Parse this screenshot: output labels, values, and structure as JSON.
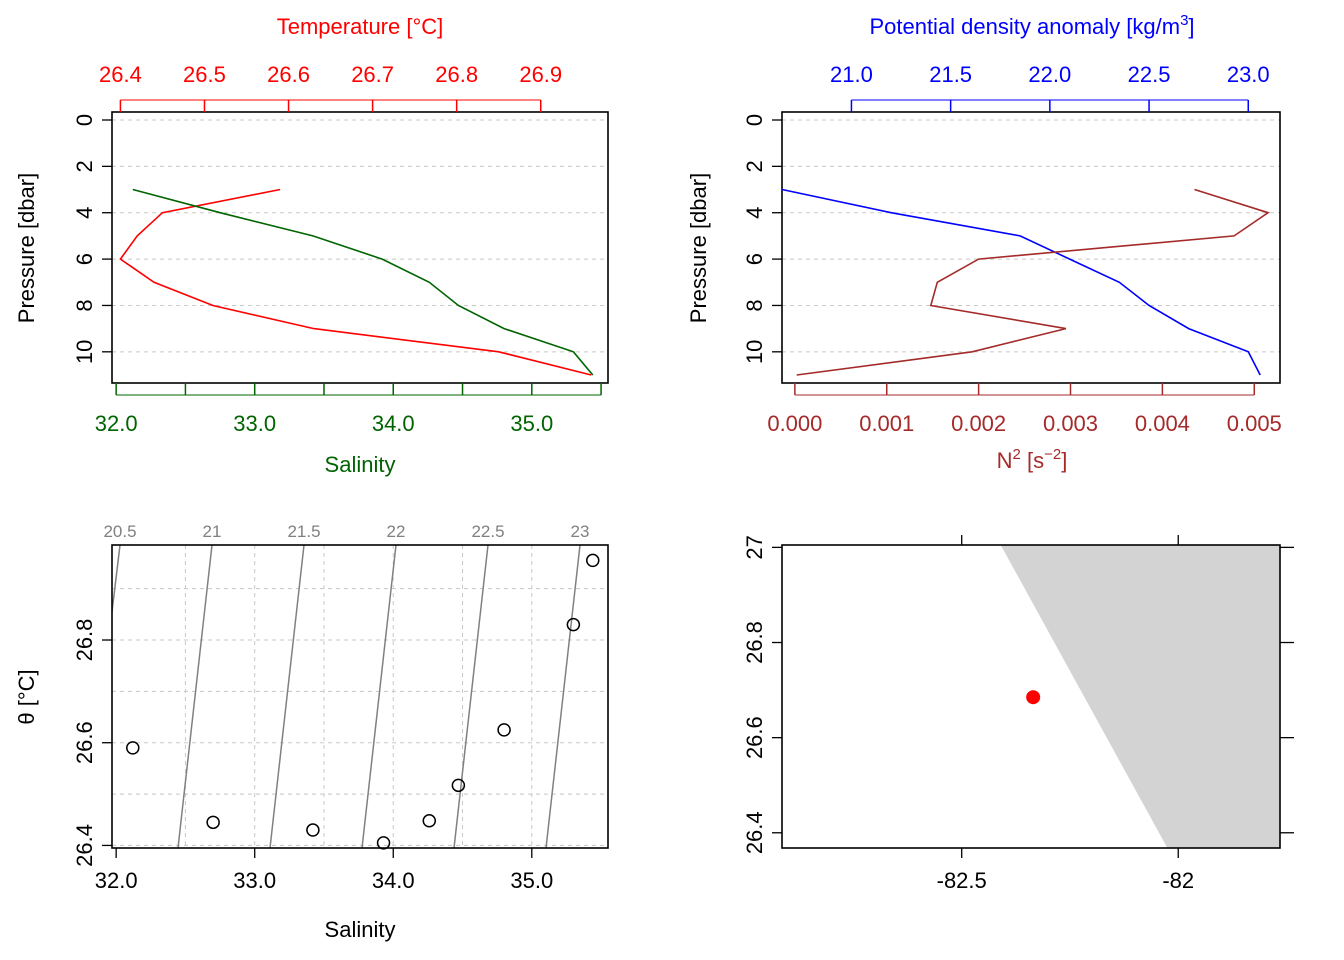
{
  "colors": {
    "temperature": "#ff0000",
    "salinity": "#006400",
    "density": "#0000ff",
    "n2": "#a52a2a",
    "isopycnal": "#808080",
    "land": "#d3d3d3",
    "station": "#ff0000"
  },
  "chart_data": [
    {
      "type": "line",
      "panel": "profile-temperature-salinity",
      "ylabel": "Pressure [dbar]",
      "yticks": [
        "0",
        "2",
        "4",
        "6",
        "8",
        "10"
      ],
      "ylim": [
        0,
        11
      ],
      "y_reversed": true,
      "top_axis": {
        "label": "Temperature [°C]",
        "ticks": [
          "26.4",
          "26.5",
          "26.6",
          "26.7",
          "26.8",
          "26.9"
        ],
        "lim": [
          26.39,
          26.98
        ]
      },
      "bottom_axis": {
        "label": "Salinity",
        "ticks": [
          "32.0",
          "33.0",
          "34.0",
          "35.0"
        ],
        "minor_ticks": [
          32.5,
          33.5,
          34.5,
          35.5
        ],
        "lim": [
          31.97,
          35.55
        ]
      },
      "series": [
        {
          "name": "Temperature",
          "axis": "top",
          "x": [
            26.59,
            26.45,
            26.42,
            26.4,
            26.44,
            26.51,
            26.63,
            26.85,
            26.96
          ],
          "y": [
            3,
            4,
            5,
            6,
            7,
            8,
            9,
            10,
            11
          ]
        },
        {
          "name": "Salinity",
          "axis": "bottom",
          "x": [
            32.12,
            32.75,
            33.42,
            33.92,
            34.26,
            34.47,
            34.8,
            35.3,
            35.44
          ],
          "y": [
            3,
            4,
            5,
            6,
            7,
            8,
            9,
            10,
            11
          ]
        }
      ],
      "grid": true
    },
    {
      "type": "line",
      "panel": "profile-density-n2",
      "ylabel": "Pressure [dbar]",
      "yticks": [
        "0",
        "2",
        "4",
        "6",
        "8",
        "10"
      ],
      "ylim": [
        0,
        11
      ],
      "y_reversed": true,
      "top_axis": {
        "label_main": "Potential density anomaly [kg/m",
        "label_sup": "3",
        "label_end": "]",
        "ticks": [
          "21.0",
          "21.5",
          "22.0",
          "22.5",
          "23.0"
        ],
        "lim": [
          20.65,
          23.16
        ]
      },
      "bottom_axis": {
        "label_main": "N",
        "label_sup": "2",
        "label_mid": " [s",
        "label_sup2": "−2",
        "label_end": "]",
        "ticks": [
          "0.000",
          "0.001",
          "0.002",
          "0.003",
          "0.004",
          "0.005"
        ],
        "lim": [
          -0.00014,
          0.00528
        ]
      },
      "series": [
        {
          "name": "Potential density anomaly",
          "axis": "top",
          "x": [
            20.65,
            21.2,
            21.85,
            22.1,
            22.35,
            22.5,
            22.7,
            23.0,
            23.06
          ],
          "y": [
            3,
            4,
            5,
            6,
            7,
            8,
            9,
            10,
            11
          ]
        },
        {
          "name": "N2",
          "axis": "bottom",
          "x": [
            0.00435,
            0.00515,
            0.00478,
            0.002,
            0.00155,
            0.00148,
            0.00295,
            0.00193,
            2e-05
          ],
          "y": [
            3,
            4,
            5,
            6,
            7,
            8,
            9,
            10,
            11
          ]
        }
      ],
      "grid": true
    },
    {
      "type": "scatter",
      "panel": "ts-diagram",
      "xlabel": "Salinity",
      "ylabel": "θ [°C]",
      "xticks": [
        "32.0",
        "33.0",
        "34.0",
        "35.0"
      ],
      "yticks": [
        "26.4",
        "26.6",
        "26.8"
      ],
      "xlim": [
        31.97,
        35.55
      ],
      "ylim": [
        26.395,
        26.985
      ],
      "isopycnal_labels": [
        "20.5",
        "21",
        "21.5",
        "22",
        "22.5",
        "23"
      ],
      "points": [
        {
          "x": 32.12,
          "y": 26.59
        },
        {
          "x": 32.7,
          "y": 26.445
        },
        {
          "x": 33.42,
          "y": 26.43
        },
        {
          "x": 33.93,
          "y": 26.405
        },
        {
          "x": 34.26,
          "y": 26.448
        },
        {
          "x": 34.47,
          "y": 26.517
        },
        {
          "x": 34.8,
          "y": 26.625
        },
        {
          "x": 35.3,
          "y": 26.83
        },
        {
          "x": 35.44,
          "y": 26.955
        }
      ],
      "grid": true
    },
    {
      "type": "scatter",
      "panel": "station-map",
      "xticks": [
        "-82.5",
        "-82"
      ],
      "yticks": [
        "26.4",
        "26.6",
        "26.8",
        "27"
      ],
      "xlim": [
        -82.915,
        -81.765
      ],
      "ylim": [
        26.368,
        27.005
      ],
      "land_polygon": [
        {
          "x": -82.41,
          "y": 27.005
        },
        {
          "x": -81.765,
          "y": 27.005
        },
        {
          "x": -81.765,
          "y": 26.368
        },
        {
          "x": -82.025,
          "y": 26.368
        }
      ],
      "station": {
        "x": -82.335,
        "y": 26.685
      }
    }
  ]
}
